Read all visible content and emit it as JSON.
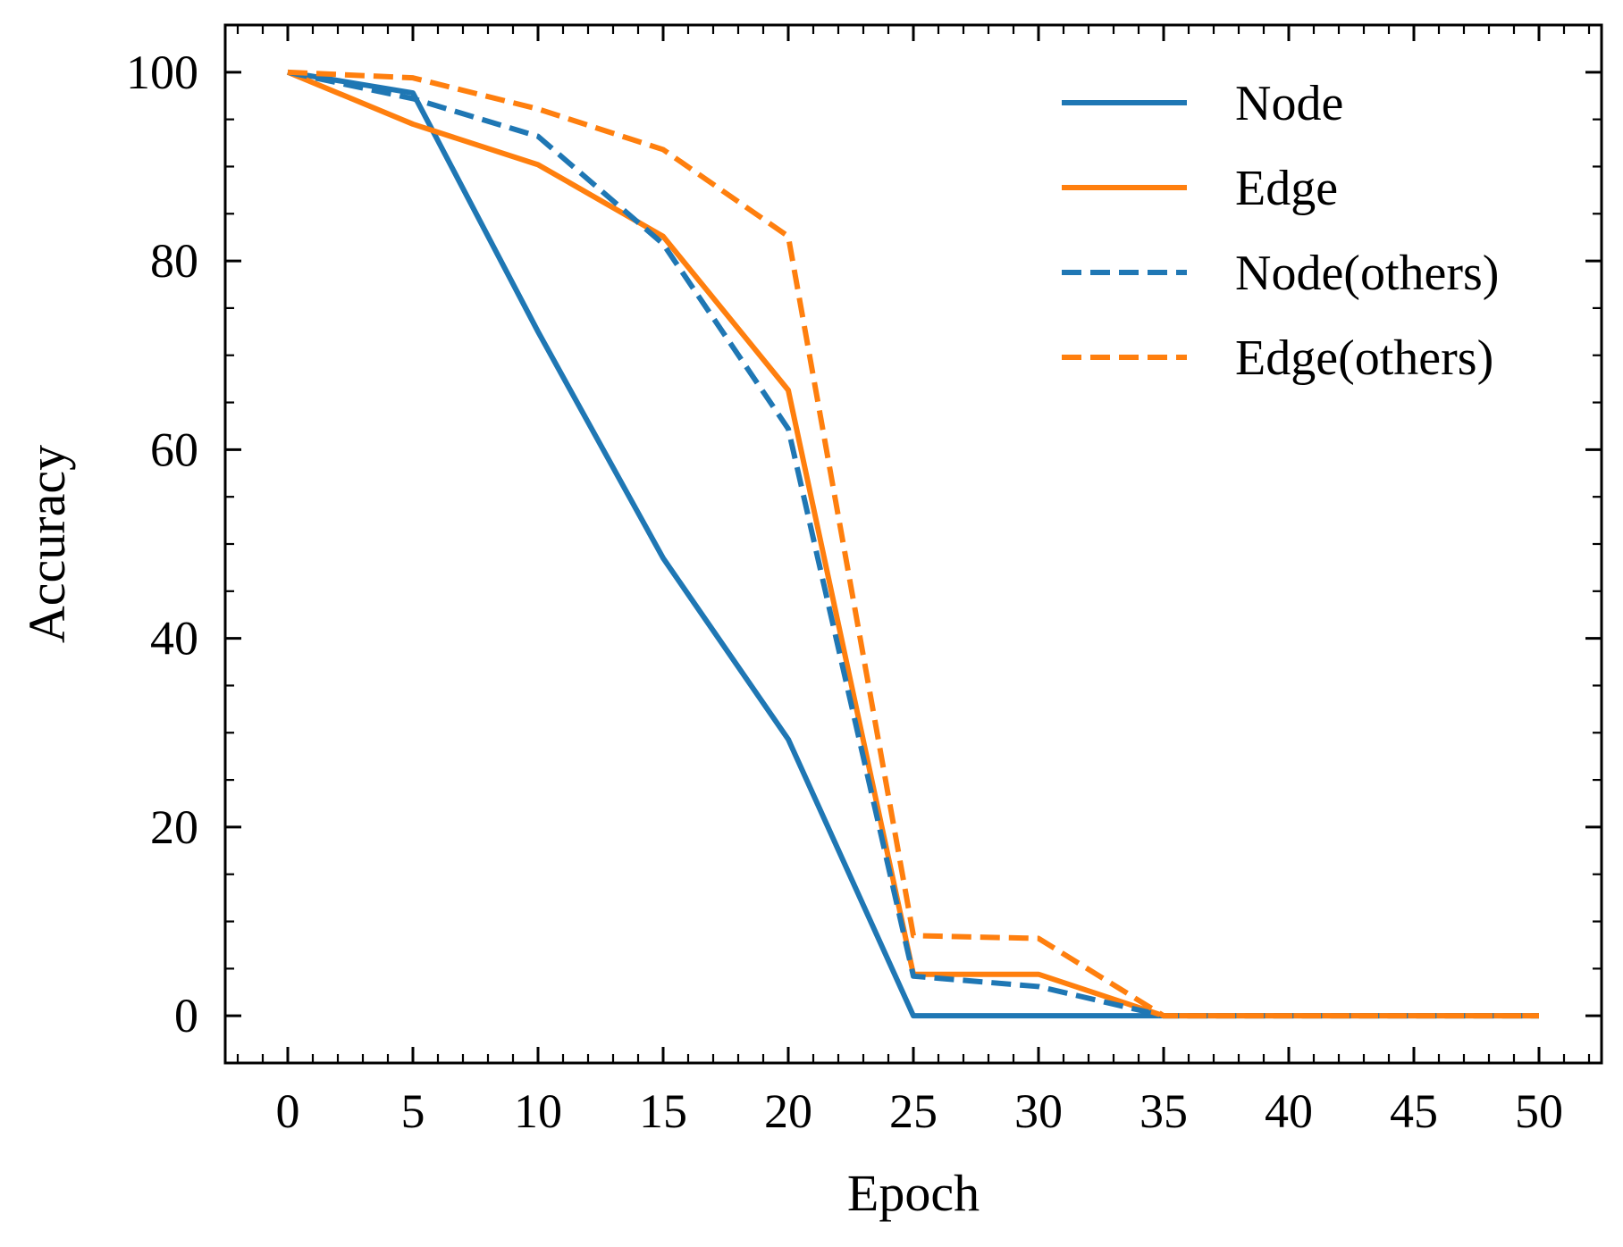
{
  "chart_data": {
    "type": "line",
    "title": "",
    "xlabel": "Epoch",
    "ylabel": "Accuracy",
    "xlim": [
      -2.5,
      52.5
    ],
    "ylim": [
      -5,
      105
    ],
    "xticks": [
      0,
      5,
      10,
      15,
      20,
      25,
      30,
      35,
      40,
      45,
      50
    ],
    "yticks": [
      0,
      20,
      40,
      60,
      80,
      100
    ],
    "x_minor_step": 1,
    "y_minor_step": 5,
    "grid": false,
    "legend_position": "top-right",
    "x": [
      0,
      5,
      10,
      15,
      20,
      25,
      30,
      35,
      40,
      45,
      50
    ],
    "series": [
      {
        "name": "Node",
        "color": "#1f77b4",
        "style": "solid",
        "values": [
          100,
          97.8,
          72.5,
          48.5,
          29.3,
          0,
          0,
          0,
          0,
          0,
          0
        ]
      },
      {
        "name": "Edge",
        "color": "#ff7f0e",
        "style": "solid",
        "values": [
          100,
          94.5,
          90.2,
          82.6,
          66.3,
          4.4,
          4.4,
          0,
          0,
          0,
          0
        ]
      },
      {
        "name": "Node(others)",
        "color": "#1f77b4",
        "style": "dashed",
        "values": [
          100,
          97.2,
          93.2,
          81.8,
          62.2,
          4.2,
          3.1,
          0,
          0,
          0,
          0
        ]
      },
      {
        "name": "Edge(others)",
        "color": "#ff7f0e",
        "style": "dashed",
        "values": [
          100,
          99.4,
          96.1,
          91.8,
          82.6,
          8.5,
          8.2,
          0,
          0,
          0,
          0
        ]
      }
    ]
  }
}
